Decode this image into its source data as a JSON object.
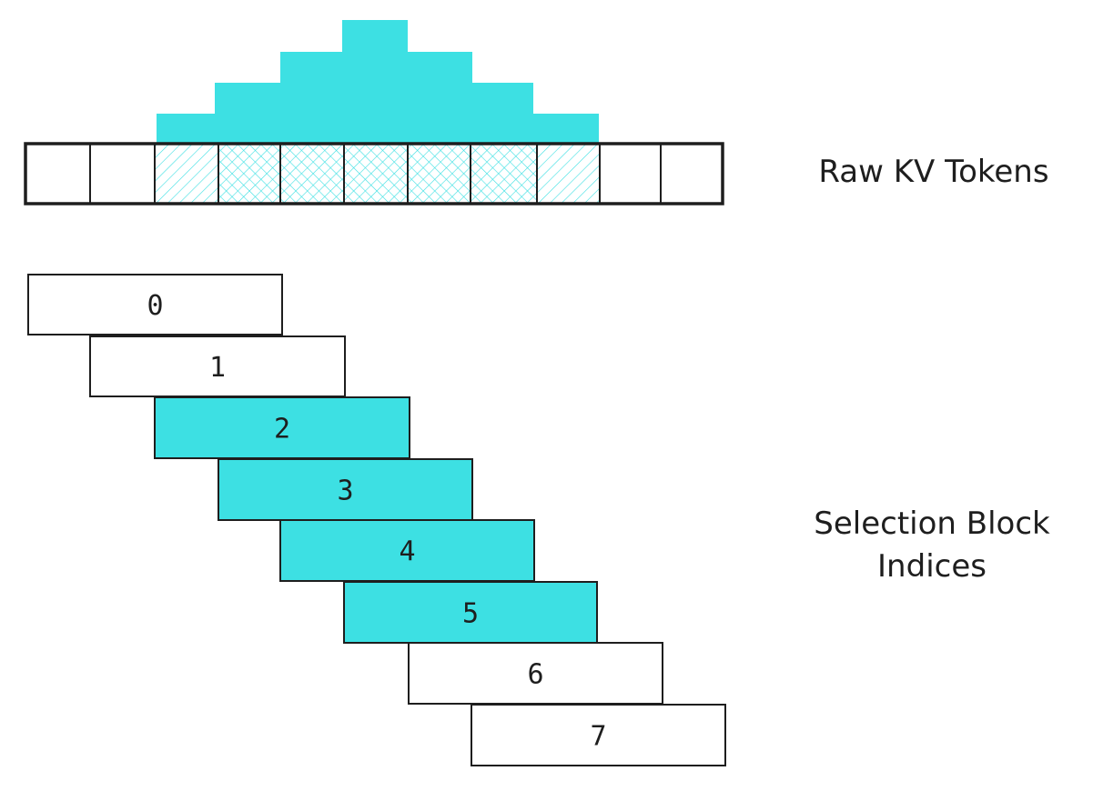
{
  "labels": {
    "raw_tokens": "Raw KV Tokens",
    "selection_line1": "Selection Block",
    "selection_line2": "Indices"
  },
  "colors": {
    "accent": "#3de0e3",
    "stroke": "#1e1e1e",
    "background": "#ffffff"
  },
  "token_cells": [
    {
      "hatched": false
    },
    {
      "hatched": false
    },
    {
      "hatched": true
    },
    {
      "hatched": true
    },
    {
      "hatched": true
    },
    {
      "hatched": true
    },
    {
      "hatched": true
    },
    {
      "hatched": true
    },
    {
      "hatched": true
    },
    {
      "hatched": false
    },
    {
      "hatched": false
    }
  ],
  "selection_blocks": [
    {
      "index": "0",
      "selected": false
    },
    {
      "index": "1",
      "selected": false
    },
    {
      "index": "2",
      "selected": true
    },
    {
      "index": "3",
      "selected": true
    },
    {
      "index": "4",
      "selected": true
    },
    {
      "index": "5",
      "selected": true
    },
    {
      "index": "6",
      "selected": false
    },
    {
      "index": "7",
      "selected": false
    }
  ]
}
